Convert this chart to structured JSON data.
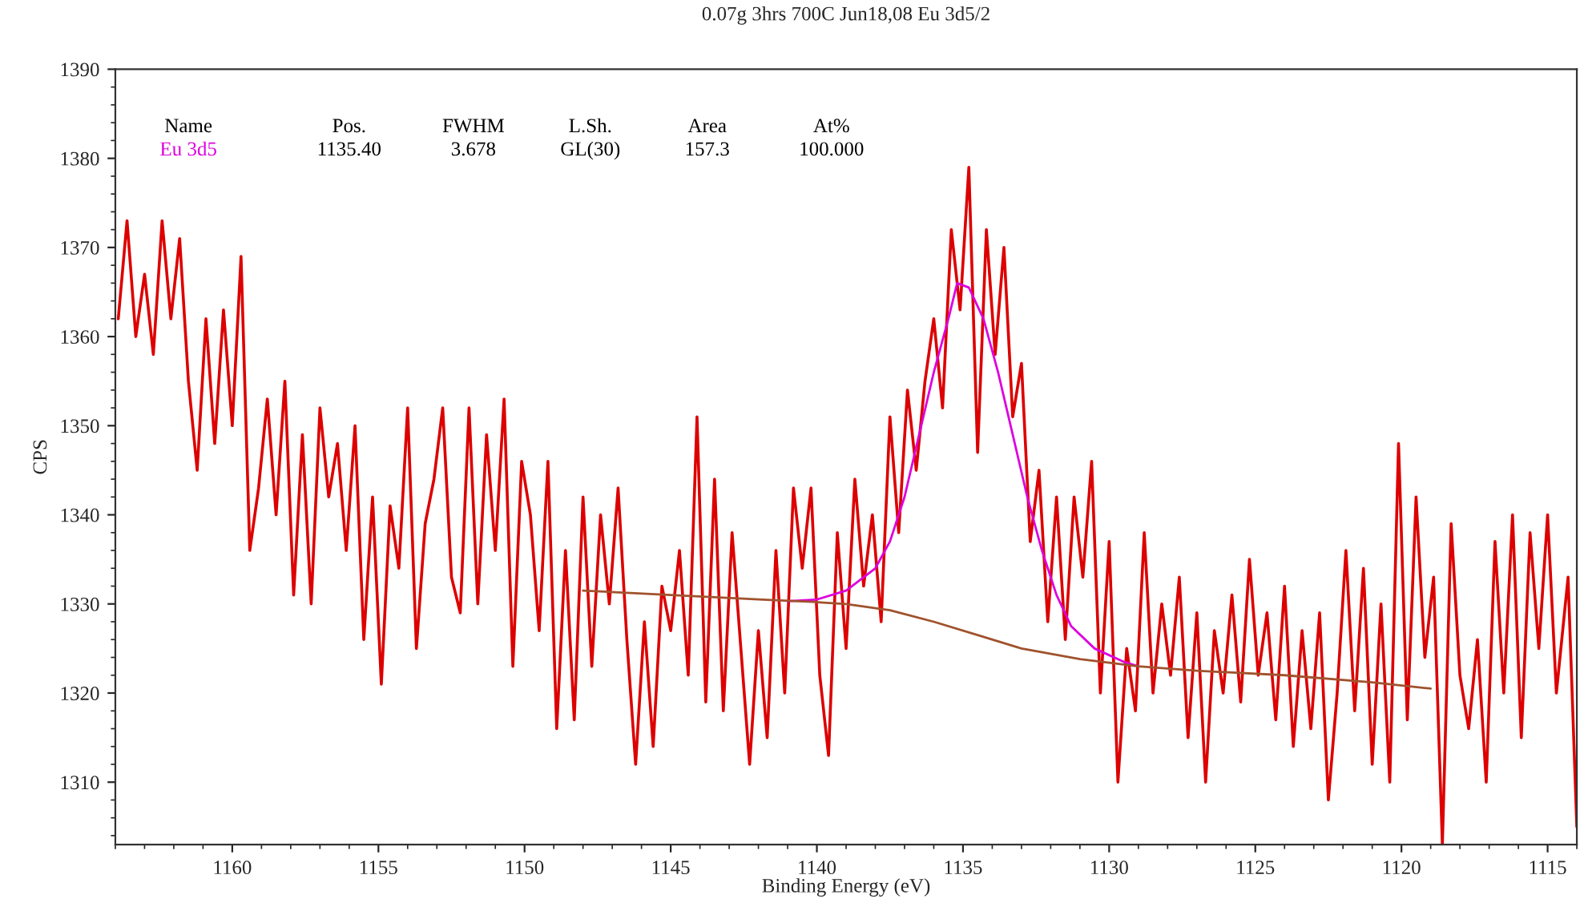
{
  "chart_data": {
    "type": "line",
    "title": "0.07g 3hrs 700C Jun18,08 Eu 3d5/2",
    "xlabel": "Binding Energy (eV)",
    "ylabel": "CPS",
    "xlim": [
      1164,
      1114
    ],
    "xticks": [
      1160,
      1155,
      1150,
      1145,
      1140,
      1135,
      1130,
      1125,
      1120,
      1115
    ],
    "ylim": [
      1303,
      1390
    ],
    "yticks": [
      1310,
      1320,
      1330,
      1340,
      1350,
      1360,
      1370,
      1380,
      1390
    ],
    "grid": false,
    "legend": false,
    "marker": "none",
    "line_style": "solid",
    "annotations": [
      "Name",
      "Pos.",
      "FWHM",
      "L.Sh.",
      "Area",
      "At%",
      "Eu 3d5",
      "1135.40",
      "3.678",
      "GL(30)",
      "157.3",
      "100.000"
    ],
    "series": [
      {
        "color": "#dd0000",
        "x": [
          1163.9,
          1163.6,
          1163.3,
          1163.0,
          1162.7,
          1162.4,
          1162.1,
          1161.8,
          1161.5,
          1161.2,
          1160.9,
          1160.6,
          1160.3,
          1160.0,
          1159.7,
          1159.4,
          1159.1,
          1158.8,
          1158.5,
          1158.2,
          1157.9,
          1157.6,
          1157.3,
          1157.0,
          1156.7,
          1156.4,
          1156.1,
          1155.8,
          1155.5,
          1155.2,
          1154.9,
          1154.6,
          1154.3,
          1154.0,
          1153.7,
          1153.4,
          1153.1,
          1152.8,
          1152.5,
          1152.2,
          1151.9,
          1151.6,
          1151.3,
          1151.0,
          1150.7,
          1150.4,
          1150.1,
          1149.8,
          1149.5,
          1149.2,
          1148.9,
          1148.6,
          1148.3,
          1148.0,
          1147.7,
          1147.4,
          1147.1,
          1146.8,
          1146.5,
          1146.2,
          1145.9,
          1145.6,
          1145.3,
          1145.0,
          1144.7,
          1144.4,
          1144.1,
          1143.8,
          1143.5,
          1143.2,
          1142.9,
          1142.6,
          1142.3,
          1142.0,
          1141.7,
          1141.4,
          1141.1,
          1140.8,
          1140.5,
          1140.2,
          1139.9,
          1139.6,
          1139.3,
          1139.0,
          1138.7,
          1138.4,
          1138.1,
          1137.8,
          1137.5,
          1137.2,
          1136.9,
          1136.6,
          1136.3,
          1136.0,
          1135.7,
          1135.4,
          1135.1,
          1134.8,
          1134.5,
          1134.2,
          1133.9,
          1133.6,
          1133.3,
          1133.0,
          1132.7,
          1132.4,
          1132.1,
          1131.8,
          1131.5,
          1131.2,
          1130.9,
          1130.6,
          1130.3,
          1130.0,
          1129.7,
          1129.4,
          1129.1,
          1128.8,
          1128.5,
          1128.2,
          1127.9,
          1127.6,
          1127.3,
          1127.0,
          1126.7,
          1126.4,
          1126.1,
          1125.8,
          1125.5,
          1125.2,
          1124.9,
          1124.6,
          1124.3,
          1124.0,
          1123.7,
          1123.4,
          1123.1,
          1122.8,
          1122.5,
          1122.2,
          1121.9,
          1121.6,
          1121.3,
          1121.0,
          1120.7,
          1120.4,
          1120.1,
          1119.8,
          1119.5,
          1119.2,
          1118.9,
          1118.6,
          1118.3,
          1118.0,
          1117.7,
          1117.4,
          1117.1,
          1116.8,
          1116.5,
          1116.2,
          1115.9,
          1115.6,
          1115.3,
          1115.0,
          1114.7,
          1114.3,
          1114.0
        ],
        "values": [
          1362,
          1373,
          1360,
          1367,
          1358,
          1373,
          1362,
          1371,
          1355,
          1345,
          1362,
          1348,
          1363,
          1350,
          1369,
          1336,
          1343,
          1353,
          1340,
          1355,
          1331,
          1349,
          1330,
          1352,
          1342,
          1348,
          1336,
          1350,
          1326,
          1342,
          1321,
          1341,
          1334,
          1352,
          1325,
          1339,
          1344,
          1352,
          1333,
          1329,
          1352,
          1330,
          1349,
          1336,
          1353,
          1323,
          1346,
          1340,
          1327,
          1346,
          1316,
          1336,
          1317,
          1342,
          1323,
          1340,
          1330,
          1343,
          1326,
          1312,
          1328,
          1314,
          1332,
          1327,
          1336,
          1322,
          1351,
          1319,
          1344,
          1318,
          1338,
          1325,
          1312,
          1327,
          1315,
          1336,
          1320,
          1343,
          1334,
          1343,
          1322,
          1313,
          1338,
          1325,
          1344,
          1332,
          1340,
          1328,
          1351,
          1338,
          1354,
          1345,
          1355,
          1362,
          1352,
          1372,
          1363,
          1379,
          1347,
          1372,
          1358,
          1370,
          1351,
          1357,
          1337,
          1345,
          1328,
          1342,
          1326,
          1342,
          1333,
          1346,
          1320,
          1337,
          1310,
          1325,
          1318,
          1338,
          1320,
          1330,
          1322,
          1333,
          1315,
          1329,
          1310,
          1327,
          1320,
          1331,
          1319,
          1335,
          1322,
          1329,
          1317,
          1332,
          1314,
          1327,
          1316,
          1329,
          1308,
          1320,
          1336,
          1318,
          1334,
          1312,
          1330,
          1310,
          1348,
          1317,
          1342,
          1324,
          1333,
          1303,
          1339,
          1322,
          1316,
          1326,
          1310,
          1337,
          1320,
          1340,
          1315,
          1338,
          1325,
          1340,
          1320,
          1333,
          1305
        ]
      },
      {
        "color": "#dd00dd",
        "x": [
          1141,
          1140,
          1139,
          1138,
          1137.5,
          1137,
          1136.5,
          1136,
          1135.5,
          1135.2,
          1134.8,
          1134.3,
          1133.8,
          1133.3,
          1132.8,
          1132.3,
          1131.8,
          1131.3,
          1130.5,
          1129.5,
          1129
        ],
        "values": [
          1330.3,
          1330.5,
          1331.5,
          1334,
          1337,
          1342,
          1349,
          1356,
          1362,
          1366,
          1365.5,
          1362,
          1356,
          1349,
          1342,
          1336,
          1331,
          1327.5,
          1325,
          1323.5,
          1323
        ]
      },
      {
        "color": "#a0522d",
        "x": [
          1148,
          1145,
          1142,
          1140,
          1139,
          1137.5,
          1136,
          1134.5,
          1133,
          1131,
          1129,
          1127,
          1124,
          1121,
          1119
        ],
        "values": [
          1331.5,
          1331,
          1330.5,
          1330.2,
          1330,
          1329.3,
          1328,
          1326.5,
          1325,
          1323.8,
          1323,
          1322.5,
          1322,
          1321.2,
          1320.5
        ]
      }
    ]
  }
}
